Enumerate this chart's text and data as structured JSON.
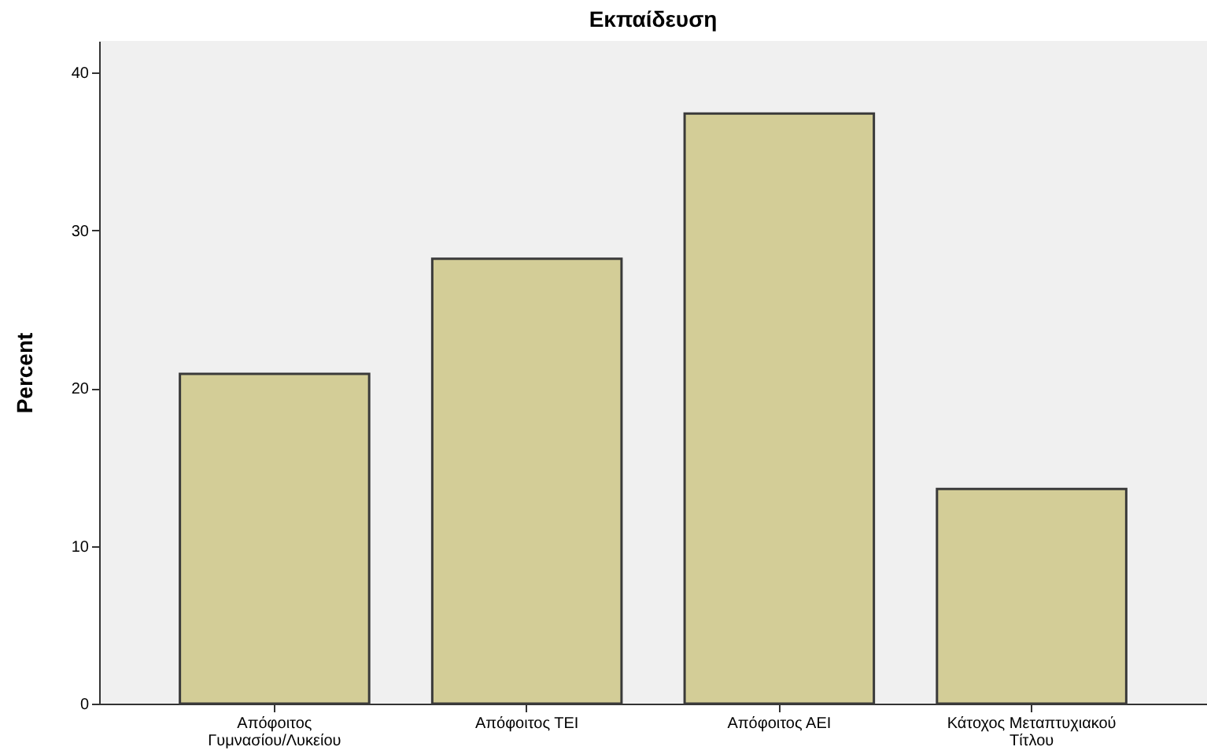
{
  "chart_data": {
    "type": "bar",
    "title": "Εκπαίδευση",
    "ylabel": "Percent",
    "categories": [
      "Απόφοιτος Γυμνασίου/Λυκείου",
      "Απόφοιτος ΤΕΙ",
      "Απόφοιτος ΑΕΙ",
      "Κάτοχος Μεταπτυχιακού Τίτλου"
    ],
    "values": [
      20.9,
      28.2,
      37.4,
      13.6
    ],
    "color": "#d3cd97",
    "ylim": [
      0,
      42
    ],
    "yticks": [
      0,
      10,
      20,
      30,
      40
    ],
    "grid": false
  }
}
